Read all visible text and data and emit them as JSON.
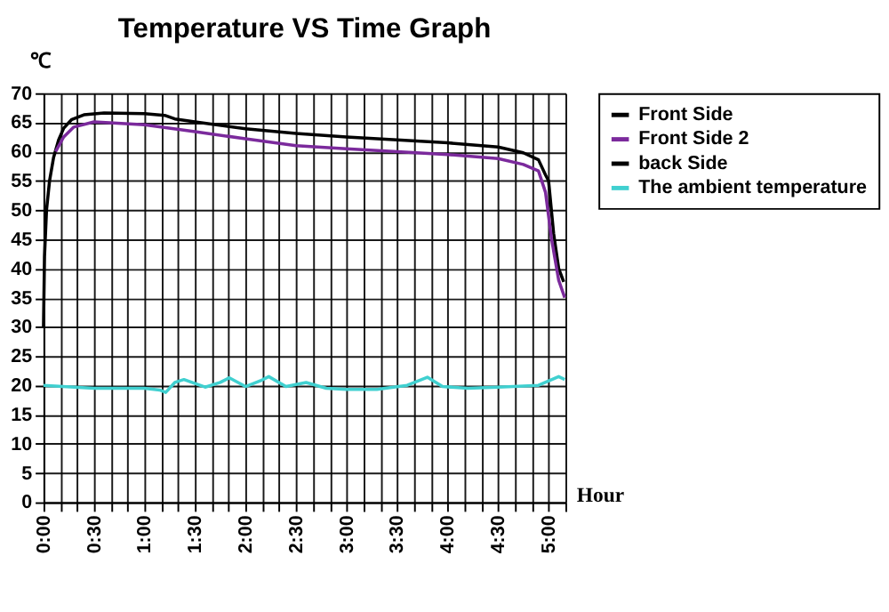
{
  "chart_data": {
    "type": "line",
    "title": "Temperature VS Time Graph",
    "xlabel": "Hour",
    "ylabel": "℃",
    "xlim": [
      0,
      5.1667
    ],
    "ylim": [
      0,
      70
    ],
    "xticks": [
      {
        "value": 0,
        "label": "0:00"
      },
      {
        "value": 0.1667,
        "label": null
      },
      {
        "value": 0.3333,
        "label": null
      },
      {
        "value": 0.5,
        "label": "0:30"
      },
      {
        "value": 0.6667,
        "label": null
      },
      {
        "value": 0.8333,
        "label": null
      },
      {
        "value": 1,
        "label": "1:00"
      },
      {
        "value": 1.1667,
        "label": null
      },
      {
        "value": 1.3333,
        "label": null
      },
      {
        "value": 1.5,
        "label": "1:30"
      },
      {
        "value": 1.6667,
        "label": null
      },
      {
        "value": 1.8333,
        "label": null
      },
      {
        "value": 2,
        "label": "2:00"
      },
      {
        "value": 2.1667,
        "label": null
      },
      {
        "value": 2.3333,
        "label": null
      },
      {
        "value": 2.5,
        "label": "2:30"
      },
      {
        "value": 2.6667,
        "label": null
      },
      {
        "value": 2.8333,
        "label": null
      },
      {
        "value": 3,
        "label": "3:00"
      },
      {
        "value": 3.1667,
        "label": null
      },
      {
        "value": 3.3333,
        "label": null
      },
      {
        "value": 3.5,
        "label": "3:30"
      },
      {
        "value": 3.6667,
        "label": null
      },
      {
        "value": 3.8333,
        "label": null
      },
      {
        "value": 4,
        "label": "4:00"
      },
      {
        "value": 4.1667,
        "label": null
      },
      {
        "value": 4.3333,
        "label": null
      },
      {
        "value": 4.5,
        "label": "4:30"
      },
      {
        "value": 4.6667,
        "label": null
      },
      {
        "value": 4.8333,
        "label": null
      },
      {
        "value": 5,
        "label": "5:00"
      },
      {
        "value": 5.1667,
        "label": null
      }
    ],
    "yticks": [
      0,
      5,
      10,
      15,
      20,
      25,
      30,
      35,
      40,
      45,
      50,
      55,
      60,
      65,
      70
    ],
    "grid": true,
    "legend": "right",
    "marker": "none",
    "line_style": "solid",
    "series": [
      {
        "name": "Front Side",
        "color": "#000000",
        "x": [
          0,
          0.01,
          0.03,
          0.06,
          0.1,
          0.15,
          0.2,
          0.28,
          0.4,
          0.6,
          1.0,
          1.2,
          1.3,
          1.5,
          2.0,
          2.5,
          3.0,
          3.5,
          4.0,
          4.5,
          4.75,
          4.9,
          4.97,
          5.0,
          5.05,
          5.1,
          5.15
        ],
        "values": [
          30,
          42,
          50,
          55,
          59,
          62,
          64,
          65.5,
          66.3,
          66.6,
          66.5,
          66.2,
          65.6,
          65.1,
          63.9,
          63.1,
          62.5,
          62,
          61.5,
          60.8,
          59.8,
          58.6,
          56,
          55,
          46,
          40,
          37.7
        ]
      },
      {
        "name": "Front Side 2",
        "color": "#7b2a9c",
        "x": [
          0.12,
          0.2,
          0.3,
          0.5,
          1.0,
          1.5,
          2.0,
          2.5,
          3.0,
          3.5,
          4.0,
          4.5,
          4.75,
          4.9,
          4.97,
          5.03,
          5.1,
          5.16
        ],
        "values": [
          60,
          62.5,
          64.2,
          65.1,
          64.6,
          63.4,
          62.2,
          61,
          60.5,
          60,
          59.5,
          58.8,
          57.8,
          56.7,
          53,
          45,
          38,
          35
        ]
      },
      {
        "name": "back Side",
        "color": "#000000"
      },
      {
        "name": "The ambient temperature",
        "color": "#40d0d0",
        "x": [
          0,
          0.5,
          1.0,
          1.15,
          1.21,
          1.3,
          1.39,
          1.47,
          1.6,
          1.75,
          1.84,
          2.0,
          2.15,
          2.23,
          2.4,
          2.6,
          2.8,
          3.0,
          3.3,
          3.6,
          3.8,
          3.95,
          4.2,
          4.5,
          4.9,
          5.1,
          5.16
        ],
        "values": [
          20,
          19.5,
          19.5,
          19.2,
          18.8,
          20.5,
          21,
          20.5,
          19.7,
          20.5,
          21.3,
          19.8,
          20.8,
          21.5,
          19.8,
          20.5,
          19.5,
          19.3,
          19.3,
          20,
          21.4,
          19.8,
          19.5,
          19.7,
          20,
          21.5,
          21
        ]
      }
    ]
  }
}
